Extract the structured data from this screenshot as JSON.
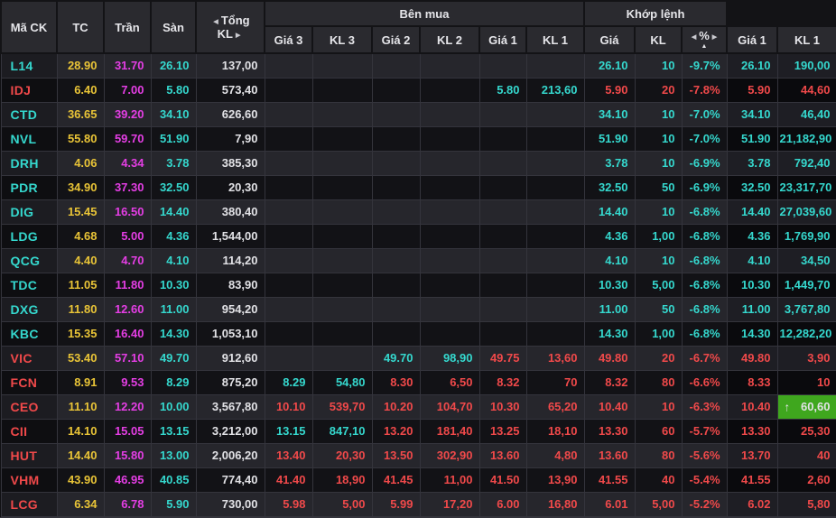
{
  "board": {
    "header": {
      "ma_ck": "Mã CK",
      "tc": "TC",
      "tran": "Trần",
      "san": "Sàn",
      "tong_kl": "Tổng KL",
      "ben_mua": "Bên mua",
      "khop_lenh": "Khớp lệnh",
      "ben_ban": "",
      "gia3": "Giá 3",
      "kl3": "KL 3",
      "gia2": "Giá 2",
      "kl2": "KL 2",
      "gia1": "Giá 1",
      "kl1": "KL 1",
      "gia": "Giá",
      "kl": "KL",
      "pct": "%",
      "sort_asc": "▲",
      "arrow_left": "◀",
      "arrow_right": "▶",
      "sell_gia1": "Giá 1",
      "sell_kl1": "KL 1"
    },
    "colors": {
      "cyan": "#35d8ce",
      "red": "#f0494a",
      "yellow": "#e9c437",
      "magenta": "#e43ee4",
      "white": "#e2e2e6",
      "green_bg": "#3fa71e"
    },
    "rows": [
      {
        "code": "L14",
        "code_c": "c",
        "tc": "28.90",
        "tran": "31.70",
        "san": "26.10",
        "total": "137,00",
        "buy": [
          null,
          null,
          null,
          null,
          null,
          null
        ],
        "match": {
          "gia": "26.10",
          "kl": "10",
          "pct": "-9.7%",
          "c": "c"
        },
        "sell": {
          "gia": "26.10",
          "gia_c": "c",
          "kl": "190,00",
          "kl_c": "c"
        }
      },
      {
        "code": "IDJ",
        "code_c": "r",
        "tc": "6.40",
        "tran": "7.00",
        "san": "5.80",
        "total": "573,40",
        "buy": [
          null,
          null,
          null,
          null,
          {
            "v": "5.80",
            "c": "c"
          },
          {
            "v": "213,60",
            "c": "c"
          }
        ],
        "match": {
          "gia": "5.90",
          "kl": "20",
          "pct": "-7.8%",
          "c": "r"
        },
        "sell": {
          "gia": "5.90",
          "gia_c": "r",
          "kl": "44,60",
          "kl_c": "r"
        }
      },
      {
        "code": "CTD",
        "code_c": "c",
        "tc": "36.65",
        "tran": "39.20",
        "san": "34.10",
        "total": "626,60",
        "buy": [
          null,
          null,
          null,
          null,
          null,
          null
        ],
        "match": {
          "gia": "34.10",
          "kl": "10",
          "pct": "-7.0%",
          "c": "c"
        },
        "sell": {
          "gia": "34.10",
          "gia_c": "c",
          "kl": "46,40",
          "kl_c": "c"
        }
      },
      {
        "code": "NVL",
        "code_c": "c",
        "tc": "55.80",
        "tran": "59.70",
        "san": "51.90",
        "total": "7,90",
        "buy": [
          null,
          null,
          null,
          null,
          null,
          null
        ],
        "match": {
          "gia": "51.90",
          "kl": "10",
          "pct": "-7.0%",
          "c": "c"
        },
        "sell": {
          "gia": "51.90",
          "gia_c": "c",
          "kl": "21,182,90",
          "kl_c": "c"
        }
      },
      {
        "code": "DRH",
        "code_c": "c",
        "tc": "4.06",
        "tran": "4.34",
        "san": "3.78",
        "total": "385,30",
        "buy": [
          null,
          null,
          null,
          null,
          null,
          null
        ],
        "match": {
          "gia": "3.78",
          "kl": "10",
          "pct": "-6.9%",
          "c": "c"
        },
        "sell": {
          "gia": "3.78",
          "gia_c": "c",
          "kl": "792,40",
          "kl_c": "c"
        }
      },
      {
        "code": "PDR",
        "code_c": "c",
        "tc": "34.90",
        "tran": "37.30",
        "san": "32.50",
        "total": "20,30",
        "buy": [
          null,
          null,
          null,
          null,
          null,
          null
        ],
        "match": {
          "gia": "32.50",
          "kl": "50",
          "pct": "-6.9%",
          "c": "c"
        },
        "sell": {
          "gia": "32.50",
          "gia_c": "c",
          "kl": "23,317,70",
          "kl_c": "c"
        }
      },
      {
        "code": "DIG",
        "code_c": "c",
        "tc": "15.45",
        "tran": "16.50",
        "san": "14.40",
        "total": "380,40",
        "buy": [
          null,
          null,
          null,
          null,
          null,
          null
        ],
        "match": {
          "gia": "14.40",
          "kl": "10",
          "pct": "-6.8%",
          "c": "c"
        },
        "sell": {
          "gia": "14.40",
          "gia_c": "c",
          "kl": "27,039,60",
          "kl_c": "c"
        }
      },
      {
        "code": "LDG",
        "code_c": "c",
        "tc": "4.68",
        "tran": "5.00",
        "san": "4.36",
        "total": "1,544,00",
        "buy": [
          null,
          null,
          null,
          null,
          null,
          null
        ],
        "match": {
          "gia": "4.36",
          "kl": "1,00",
          "pct": "-6.8%",
          "c": "c"
        },
        "sell": {
          "gia": "4.36",
          "gia_c": "c",
          "kl": "1,769,90",
          "kl_c": "c"
        }
      },
      {
        "code": "QCG",
        "code_c": "c",
        "tc": "4.40",
        "tran": "4.70",
        "san": "4.10",
        "total": "114,20",
        "buy": [
          null,
          null,
          null,
          null,
          null,
          null
        ],
        "match": {
          "gia": "4.10",
          "kl": "10",
          "pct": "-6.8%",
          "c": "c"
        },
        "sell": {
          "gia": "4.10",
          "gia_c": "c",
          "kl": "34,50",
          "kl_c": "c"
        }
      },
      {
        "code": "TDC",
        "code_c": "c",
        "tc": "11.05",
        "tran": "11.80",
        "san": "10.30",
        "total": "83,90",
        "buy": [
          null,
          null,
          null,
          null,
          null,
          null
        ],
        "match": {
          "gia": "10.30",
          "kl": "5,00",
          "pct": "-6.8%",
          "c": "c"
        },
        "sell": {
          "gia": "10.30",
          "gia_c": "c",
          "kl": "1,449,70",
          "kl_c": "c"
        }
      },
      {
        "code": "DXG",
        "code_c": "c",
        "tc": "11.80",
        "tran": "12.60",
        "san": "11.00",
        "total": "954,20",
        "buy": [
          null,
          null,
          null,
          null,
          null,
          null
        ],
        "match": {
          "gia": "11.00",
          "kl": "50",
          "pct": "-6.8%",
          "c": "c"
        },
        "sell": {
          "gia": "11.00",
          "gia_c": "c",
          "kl": "3,767,80",
          "kl_c": "c"
        }
      },
      {
        "code": "KBC",
        "code_c": "c",
        "tc": "15.35",
        "tran": "16.40",
        "san": "14.30",
        "total": "1,053,10",
        "buy": [
          null,
          null,
          null,
          null,
          null,
          null
        ],
        "match": {
          "gia": "14.30",
          "kl": "1,00",
          "pct": "-6.8%",
          "c": "c"
        },
        "sell": {
          "gia": "14.30",
          "gia_c": "c",
          "kl": "12,282,20",
          "kl_c": "c"
        }
      },
      {
        "code": "VIC",
        "code_c": "r",
        "tc": "53.40",
        "tran": "57.10",
        "san": "49.70",
        "total": "912,60",
        "buy": [
          null,
          null,
          {
            "v": "49.70",
            "c": "c"
          },
          {
            "v": "98,90",
            "c": "c"
          },
          {
            "v": "49.75",
            "c": "r"
          },
          {
            "v": "13,60",
            "c": "r"
          }
        ],
        "match": {
          "gia": "49.80",
          "kl": "20",
          "pct": "-6.7%",
          "c": "r"
        },
        "sell": {
          "gia": "49.80",
          "gia_c": "r",
          "kl": "3,90",
          "kl_c": "r"
        }
      },
      {
        "code": "FCN",
        "code_c": "r",
        "tc": "8.91",
        "tran": "9.53",
        "san": "8.29",
        "total": "875,20",
        "buy": [
          {
            "v": "8.29",
            "c": "c"
          },
          {
            "v": "54,80",
            "c": "c"
          },
          {
            "v": "8.30",
            "c": "r"
          },
          {
            "v": "6,50",
            "c": "r"
          },
          {
            "v": "8.32",
            "c": "r"
          },
          {
            "v": "70",
            "c": "r"
          }
        ],
        "match": {
          "gia": "8.32",
          "kl": "80",
          "pct": "-6.6%",
          "c": "r"
        },
        "sell": {
          "gia": "8.33",
          "gia_c": "r",
          "kl": "10",
          "kl_c": "r"
        }
      },
      {
        "code": "CEO",
        "code_c": "r",
        "tc": "11.10",
        "tran": "12.20",
        "san": "10.00",
        "total": "3,567,80",
        "buy": [
          {
            "v": "10.10",
            "c": "r"
          },
          {
            "v": "539,70",
            "c": "r"
          },
          {
            "v": "10.20",
            "c": "r"
          },
          {
            "v": "104,70",
            "c": "r"
          },
          {
            "v": "10.30",
            "c": "r"
          },
          {
            "v": "65,20",
            "c": "r"
          }
        ],
        "match": {
          "gia": "10.40",
          "kl": "10",
          "pct": "-6.3%",
          "c": "r"
        },
        "sell": {
          "gia": "10.40",
          "gia_c": "r",
          "kl": "60,60",
          "kl_c": "w",
          "kl_bg": "green",
          "arrow": "↑"
        }
      },
      {
        "code": "CII",
        "code_c": "r",
        "tc": "14.10",
        "tran": "15.05",
        "san": "13.15",
        "total": "3,212,00",
        "buy": [
          {
            "v": "13.15",
            "c": "c"
          },
          {
            "v": "847,10",
            "c": "c"
          },
          {
            "v": "13.20",
            "c": "r"
          },
          {
            "v": "181,40",
            "c": "r"
          },
          {
            "v": "13.25",
            "c": "r"
          },
          {
            "v": "18,10",
            "c": "r"
          }
        ],
        "match": {
          "gia": "13.30",
          "kl": "60",
          "pct": "-5.7%",
          "c": "r"
        },
        "sell": {
          "gia": "13.30",
          "gia_c": "r",
          "kl": "25,30",
          "kl_c": "r"
        }
      },
      {
        "code": "HUT",
        "code_c": "r",
        "tc": "14.40",
        "tran": "15.80",
        "san": "13.00",
        "total": "2,006,20",
        "buy": [
          {
            "v": "13.40",
            "c": "r"
          },
          {
            "v": "20,30",
            "c": "r"
          },
          {
            "v": "13.50",
            "c": "r"
          },
          {
            "v": "302,90",
            "c": "r"
          },
          {
            "v": "13.60",
            "c": "r"
          },
          {
            "v": "4,80",
            "c": "r"
          }
        ],
        "match": {
          "gia": "13.60",
          "kl": "80",
          "pct": "-5.6%",
          "c": "r"
        },
        "sell": {
          "gia": "13.70",
          "gia_c": "r",
          "kl": "40",
          "kl_c": "r"
        }
      },
      {
        "code": "VHM",
        "code_c": "r",
        "tc": "43.90",
        "tran": "46.95",
        "san": "40.85",
        "total": "774,40",
        "buy": [
          {
            "v": "41.40",
            "c": "r"
          },
          {
            "v": "18,90",
            "c": "r"
          },
          {
            "v": "41.45",
            "c": "r"
          },
          {
            "v": "11,00",
            "c": "r"
          },
          {
            "v": "41.50",
            "c": "r"
          },
          {
            "v": "13,90",
            "c": "r"
          }
        ],
        "match": {
          "gia": "41.55",
          "kl": "40",
          "pct": "-5.4%",
          "c": "r"
        },
        "sell": {
          "gia": "41.55",
          "gia_c": "r",
          "kl": "2,60",
          "kl_c": "r"
        }
      },
      {
        "code": "LCG",
        "code_c": "r",
        "tc": "6.34",
        "tran": "6.78",
        "san": "5.90",
        "total": "730,00",
        "buy": [
          {
            "v": "5.98",
            "c": "r"
          },
          {
            "v": "5,00",
            "c": "r"
          },
          {
            "v": "5.99",
            "c": "r"
          },
          {
            "v": "17,20",
            "c": "r"
          },
          {
            "v": "6.00",
            "c": "r"
          },
          {
            "v": "16,80",
            "c": "r"
          }
        ],
        "match": {
          "gia": "6.01",
          "kl": "5,00",
          "pct": "-5.2%",
          "c": "r"
        },
        "sell": {
          "gia": "6.02",
          "gia_c": "r",
          "kl": "5,80",
          "kl_c": "r"
        }
      }
    ]
  }
}
